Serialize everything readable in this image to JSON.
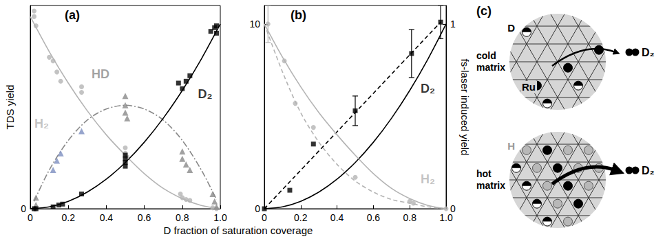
{
  "chart_data": [
    {
      "type": "scatter",
      "label": "(a)",
      "x_label": "D fraction of saturation coverage",
      "y_label": "TDS yield",
      "xlim": [
        0,
        1
      ],
      "xticks": [
        0,
        0.2,
        0.4,
        0.6,
        0.8,
        {
          "value": 1,
          "label": "1.0"
        }
      ],
      "ylim": [
        0,
        11
      ],
      "yticks": [
        0
      ],
      "grid": false,
      "series": [
        {
          "name": "H₂",
          "color": "#b4b4b4",
          "marker": "circle",
          "line_style": "solid",
          "points": [
            [
              0.02,
              10.7
            ],
            [
              0.02,
              10.4
            ],
            [
              0.03,
              9.9
            ],
            [
              0.1,
              8.2
            ],
            [
              0.12,
              8.0
            ],
            [
              0.14,
              7.4
            ],
            [
              0.16,
              6.9
            ],
            [
              0.27,
              6.6
            ],
            [
              0.27,
              6.3
            ],
            [
              0.5,
              3.3
            ],
            [
              0.5,
              3.0
            ],
            [
              0.51,
              2.8
            ],
            [
              0.79,
              0.8
            ],
            [
              0.8,
              0.6
            ],
            [
              0.82,
              0.5
            ],
            [
              0.84,
              0.45
            ],
            [
              0.96,
              0.05
            ],
            [
              0.98,
              0.0
            ]
          ],
          "curve": [
            [
              0,
              10.4
            ],
            [
              0.1,
              8.5
            ],
            [
              0.2,
              6.8
            ],
            [
              0.3,
              5.3
            ],
            [
              0.4,
              4.0
            ],
            [
              0.5,
              2.9
            ],
            [
              0.6,
              1.9
            ],
            [
              0.7,
              1.1
            ],
            [
              0.8,
              0.55
            ],
            [
              0.9,
              0.18
            ],
            [
              1.0,
              0
            ]
          ]
        },
        {
          "name": "HD",
          "color": "#8a8a8a",
          "marker": "triangle",
          "line_style": "dashdot",
          "points": [
            [
              0.03,
              0.6
            ],
            [
              0.03,
              0.2
            ],
            [
              0.12,
              2.1
            ],
            [
              0.14,
              2.6
            ],
            [
              0.16,
              3.0
            ],
            [
              0.27,
              4.2
            ],
            [
              0.5,
              6.1
            ],
            [
              0.5,
              5.6
            ],
            [
              0.5,
              5.2
            ],
            [
              0.51,
              4.9
            ],
            [
              0.8,
              3.1
            ],
            [
              0.8,
              2.7
            ],
            [
              0.82,
              2.4
            ],
            [
              0.84,
              2.1
            ],
            [
              0.96,
              0.8
            ],
            [
              0.97,
              0.4
            ],
            [
              0.98,
              0.1
            ]
          ],
          "colors": [
            "#8a8a8a",
            "#8a8a8a",
            "#7d8fc0",
            "#7d8fc0",
            "#7d8fc0",
            "#7d8fc0",
            "#8a8a8a",
            "#8a8a8a",
            "#8a8a8a",
            "#8a8a8a",
            "#8a8a8a",
            "#8a8a8a",
            "#8a8a8a",
            "#8a8a8a",
            "#8a8a8a",
            "#8a8a8a",
            "#8a8a8a"
          ],
          "curve": [
            [
              0.02,
              0.4
            ],
            [
              0.1,
              2.1
            ],
            [
              0.2,
              3.7
            ],
            [
              0.3,
              4.8
            ],
            [
              0.4,
              5.4
            ],
            [
              0.5,
              5.6
            ],
            [
              0.6,
              5.4
            ],
            [
              0.7,
              4.8
            ],
            [
              0.8,
              3.7
            ],
            [
              0.9,
              2.1
            ],
            [
              0.98,
              0.5
            ]
          ]
        },
        {
          "name": "D₂",
          "color": "#000000",
          "marker": "square",
          "line_style": "solid",
          "points": [
            [
              0.02,
              0
            ],
            [
              0.03,
              0
            ],
            [
              0.12,
              0.1
            ],
            [
              0.15,
              0.2
            ],
            [
              0.17,
              0.25
            ],
            [
              0.27,
              0.8
            ],
            [
              0.5,
              2.3
            ],
            [
              0.5,
              2.5
            ],
            [
              0.5,
              2.7
            ],
            [
              0.5,
              2.9
            ],
            [
              0.78,
              6.8
            ],
            [
              0.8,
              6.5
            ],
            [
              0.82,
              6.9
            ],
            [
              0.84,
              7.2
            ],
            [
              0.95,
              9.6
            ],
            [
              0.97,
              9.8
            ],
            [
              0.98,
              9.9
            ],
            [
              0.98,
              9.5
            ]
          ],
          "curve": [
            [
              0,
              0
            ],
            [
              0.1,
              0.1
            ],
            [
              0.2,
              0.4
            ],
            [
              0.3,
              0.9
            ],
            [
              0.4,
              1.6
            ],
            [
              0.5,
              2.5
            ],
            [
              0.6,
              3.6
            ],
            [
              0.7,
              4.9
            ],
            [
              0.8,
              6.4
            ],
            [
              0.9,
              8.1
            ],
            [
              1.0,
              10.0
            ]
          ]
        }
      ]
    },
    {
      "type": "scatter",
      "label": "(b)",
      "y2_label": "fs-laser induced yield",
      "xlim": [
        0,
        1
      ],
      "xticks": [
        0,
        0.2,
        0.4,
        0.6,
        0.8,
        {
          "value": 1,
          "label": "1.0"
        }
      ],
      "ylim": [
        0,
        11
      ],
      "yticks": [
        0,
        10
      ],
      "y2lim": [
        0,
        1.1
      ],
      "y2ticks": [
        0,
        1
      ],
      "grid": false,
      "series": [
        {
          "name": "D₂",
          "color": "#000000",
          "marker": "square",
          "axis": "y2",
          "line_style": "dashed",
          "points": [
            [
              0,
              0
            ],
            [
              0.14,
              0.1
            ],
            [
              0.27,
              0.35
            ],
            [
              0.5,
              0.53
            ],
            [
              0.81,
              0.84
            ],
            [
              0.97,
              1.01
            ]
          ],
          "errors": [
            null,
            null,
            null,
            0.08,
            0.13,
            0.09
          ],
          "curve": [
            [
              0,
              0
            ],
            [
              0.97,
              1.01
            ]
          ]
        },
        {
          "color": "#000000",
          "axis": "y",
          "line_style": "solid",
          "curve": [
            [
              0,
              0
            ],
            [
              0.1,
              0.1
            ],
            [
              0.2,
              0.4
            ],
            [
              0.3,
              0.9
            ],
            [
              0.4,
              1.6
            ],
            [
              0.5,
              2.5
            ],
            [
              0.6,
              3.6
            ],
            [
              0.7,
              4.9
            ],
            [
              0.8,
              6.4
            ],
            [
              0.9,
              8.1
            ],
            [
              1.0,
              10.0
            ]
          ]
        },
        {
          "name": "H₂",
          "color": "#b4b4b4",
          "marker": "circle",
          "axis": "y2",
          "line_style": "dashed",
          "points": [
            [
              0.02,
              1.0
            ],
            [
              0.11,
              0.8
            ],
            [
              0.17,
              0.57
            ],
            [
              0.27,
              0.44
            ],
            [
              0.5,
              0.17
            ],
            [
              0.8,
              0.04
            ],
            [
              0.82,
              0.03
            ],
            [
              1.0,
              0.0
            ]
          ],
          "errors": [
            0.1,
            null,
            null,
            null,
            null,
            null,
            null,
            null
          ],
          "curve": [
            [
              0,
              1.0
            ],
            [
              0.1,
              0.74
            ],
            [
              0.2,
              0.52
            ],
            [
              0.3,
              0.36
            ],
            [
              0.4,
              0.24
            ],
            [
              0.5,
              0.15
            ],
            [
              0.6,
              0.09
            ],
            [
              0.7,
              0.05
            ],
            [
              0.8,
              0.03
            ],
            [
              0.9,
              0.01
            ],
            [
              1.0,
              0
            ]
          ]
        },
        {
          "color": "#b4b4b4",
          "axis": "y",
          "line_style": "solid",
          "curve": [
            [
              0,
              10.0
            ],
            [
              0.1,
              8.2
            ],
            [
              0.2,
              6.6
            ],
            [
              0.3,
              5.2
            ],
            [
              0.4,
              4.0
            ],
            [
              0.5,
              2.9
            ],
            [
              0.6,
              1.9
            ],
            [
              0.7,
              1.1
            ],
            [
              0.8,
              0.55
            ],
            [
              0.9,
              0.18
            ],
            [
              1.0,
              0
            ]
          ]
        }
      ]
    }
  ],
  "diagram": {
    "label": "(c)",
    "panels": [
      {
        "title": "cold matrix",
        "product": "D₂",
        "labels": [
          {
            "text": "D",
            "color": "#000000"
          },
          {
            "text": "Ru",
            "color": "#000000"
          }
        ]
      },
      {
        "title": "hot matrix",
        "product": "D₂",
        "labels": [
          {
            "text": "H",
            "color": "#9a9a9a"
          }
        ]
      }
    ]
  }
}
